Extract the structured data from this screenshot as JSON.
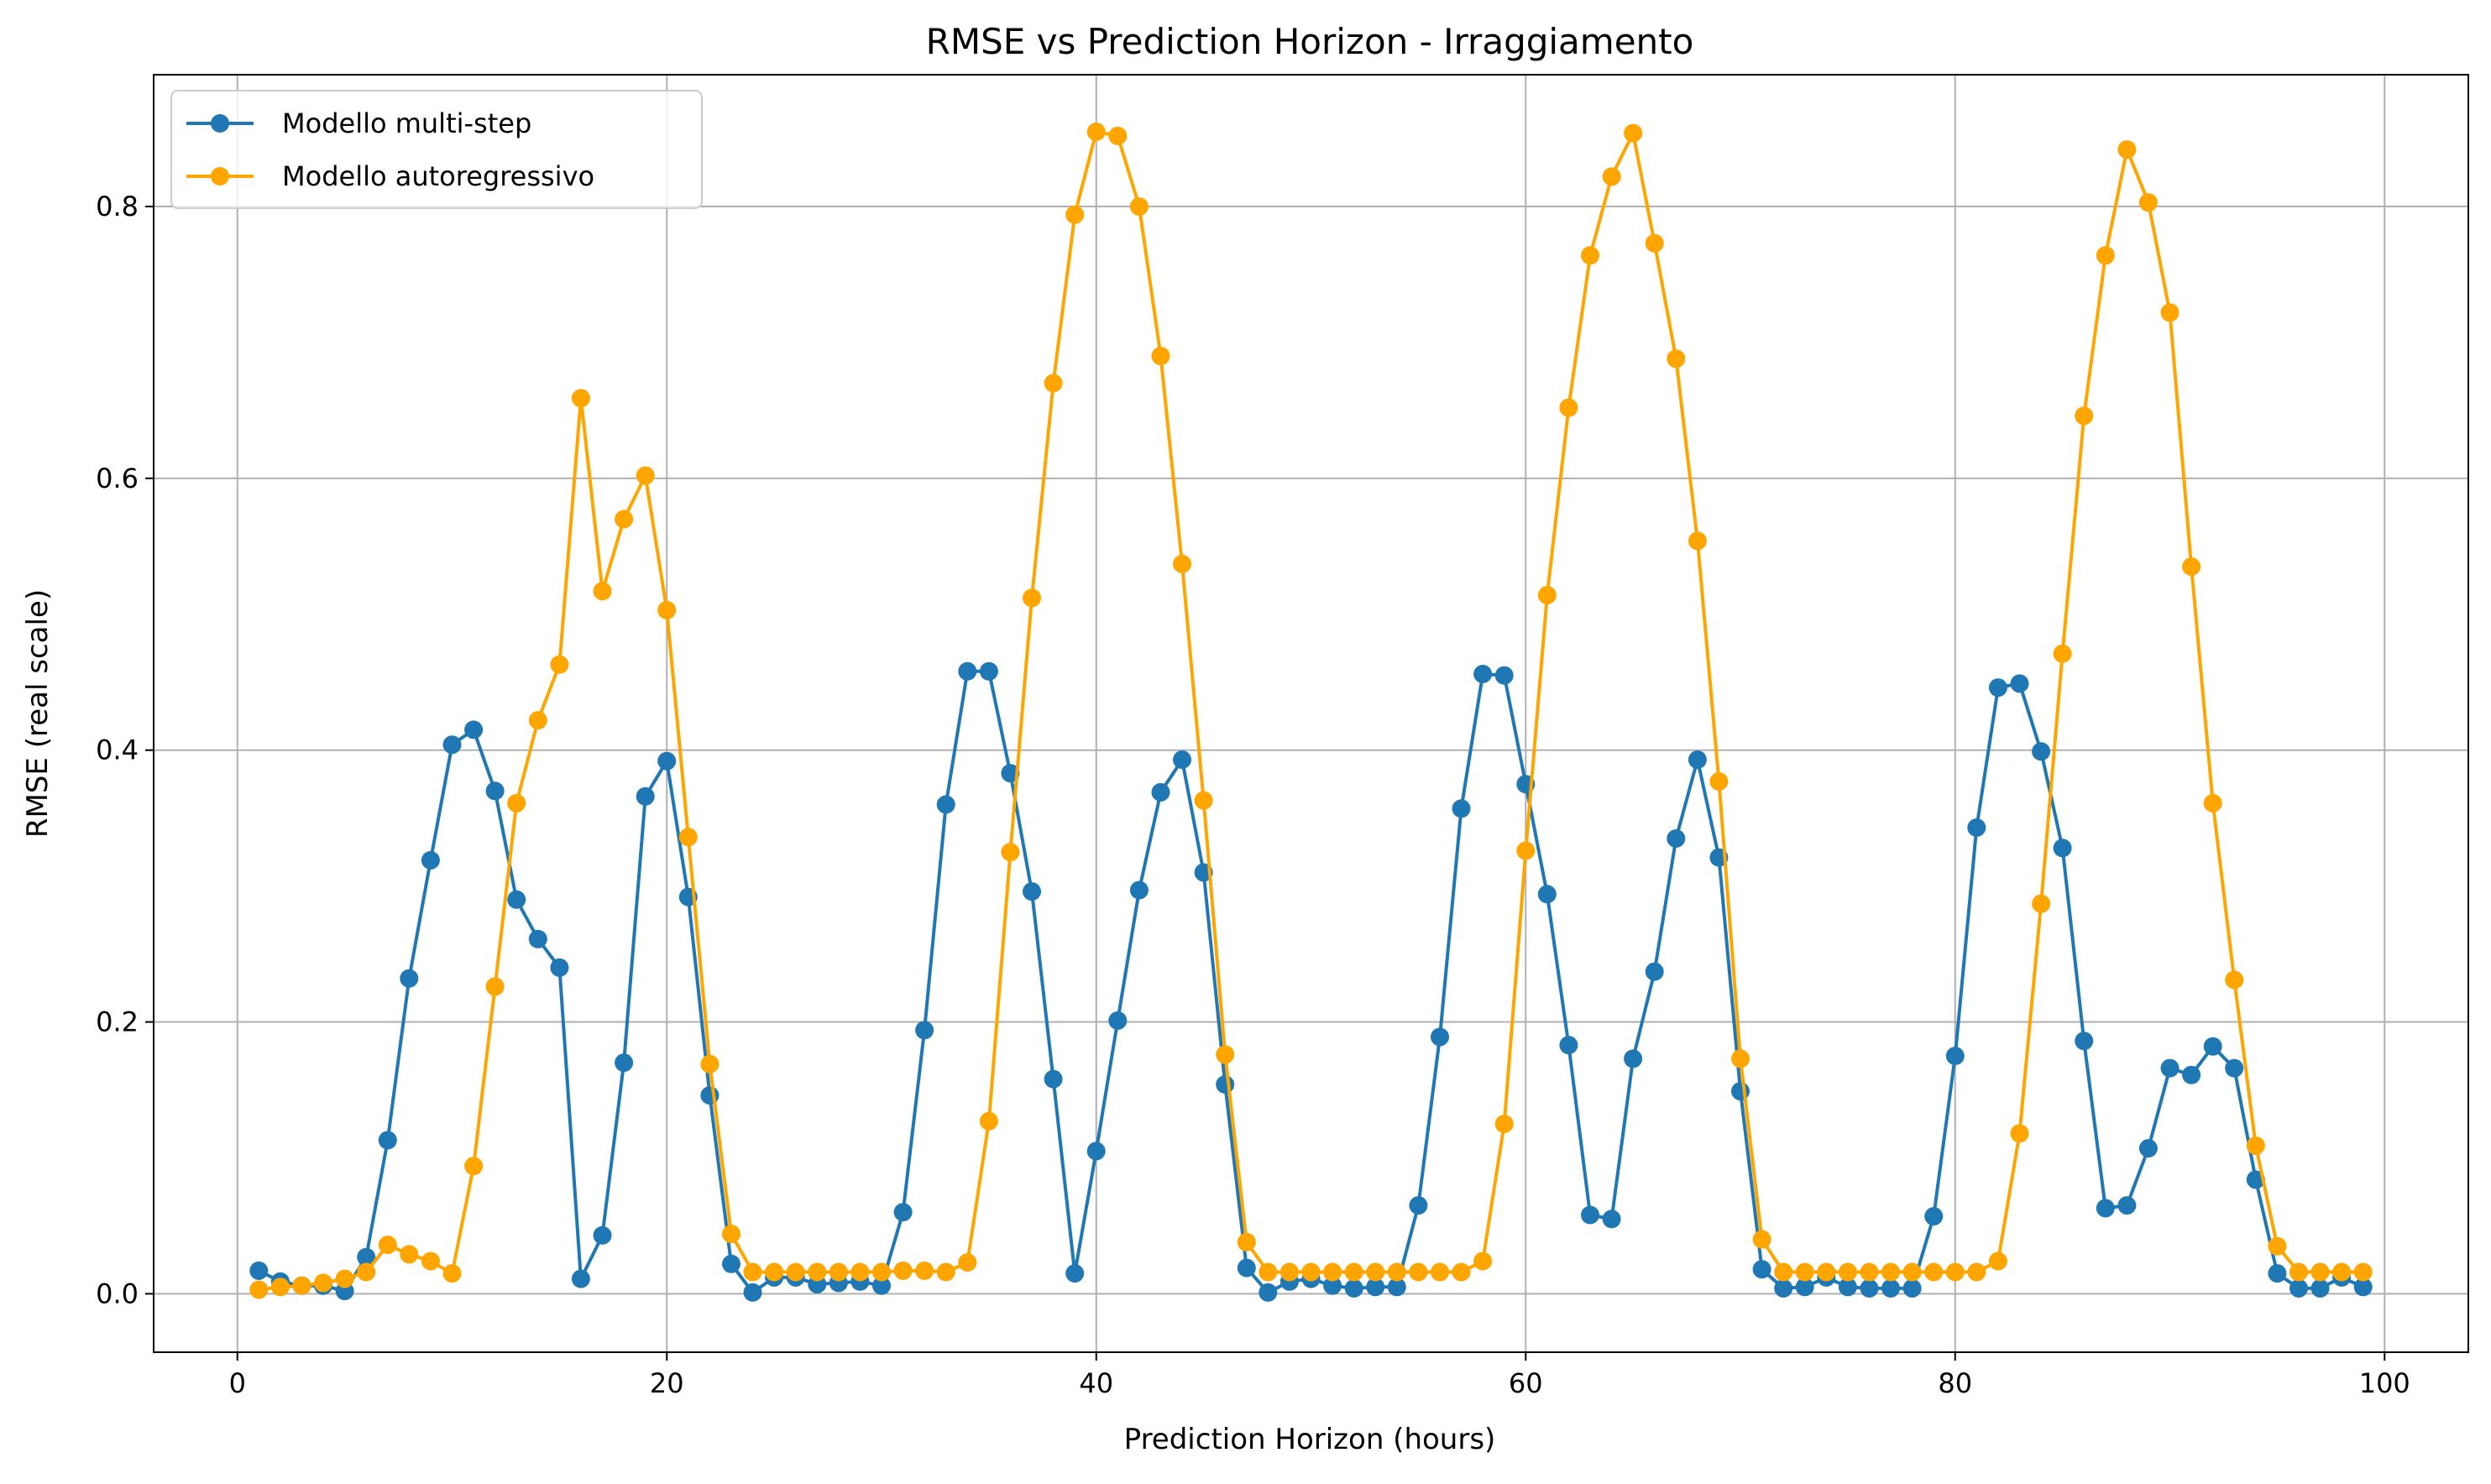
{
  "chart_data": {
    "type": "line",
    "title": "RMSE vs Prediction Horizon - Irraggiamento",
    "xlabel": "Prediction Horizon (hours)",
    "ylabel": "RMSE (real scale)",
    "xlim": [
      -3.9,
      103.9
    ],
    "ylim": [
      -0.043,
      0.897
    ],
    "x_ticks": [
      0,
      20,
      40,
      60,
      80,
      100
    ],
    "x_tick_labels": [
      "0",
      "20",
      "40",
      "60",
      "80",
      "100"
    ],
    "y_ticks": [
      0.0,
      0.2,
      0.4,
      0.6,
      0.8
    ],
    "y_tick_labels": [
      "0.0",
      "0.2",
      "0.4",
      "0.6",
      "0.8"
    ],
    "grid": true,
    "legend_position": "top-left",
    "x": [
      1,
      2,
      3,
      4,
      5,
      6,
      7,
      8,
      9,
      10,
      11,
      12,
      13,
      14,
      15,
      16,
      17,
      18,
      19,
      20,
      21,
      22,
      23,
      24,
      25,
      26,
      27,
      28,
      29,
      30,
      31,
      32,
      33,
      34,
      35,
      36,
      37,
      38,
      39,
      40,
      41,
      42,
      43,
      44,
      45,
      46,
      47,
      48,
      49,
      50,
      51,
      52,
      53,
      54,
      55,
      56,
      57,
      58,
      59,
      60,
      61,
      62,
      63,
      64,
      65,
      66,
      67,
      68,
      69,
      70,
      71,
      72,
      73,
      74,
      75,
      76,
      77,
      78,
      79,
      80,
      81,
      82,
      83,
      84,
      85,
      86,
      87,
      88,
      89,
      90,
      91,
      92,
      93,
      94,
      95,
      96,
      97,
      98,
      99
    ],
    "series": [
      {
        "name": "Modello multi-step",
        "color": "#1f77b4",
        "values": [
          0.017,
          0.009,
          0.006,
          0.006,
          0.002,
          0.027,
          0.113,
          0.232,
          0.319,
          0.404,
          0.415,
          0.37,
          0.29,
          0.261,
          0.24,
          0.011,
          0.043,
          0.17,
          0.366,
          0.392,
          0.292,
          0.146,
          0.022,
          0.001,
          0.012,
          0.012,
          0.007,
          0.008,
          0.009,
          0.006,
          0.06,
          0.194,
          0.36,
          0.458,
          0.458,
          0.383,
          0.296,
          0.158,
          0.015,
          0.105,
          0.201,
          0.297,
          0.369,
          0.393,
          0.31,
          0.154,
          0.019,
          0.001,
          0.009,
          0.011,
          0.006,
          0.004,
          0.005,
          0.005,
          0.065,
          0.189,
          0.357,
          0.456,
          0.455,
          0.375,
          0.294,
          0.183,
          0.058,
          0.055,
          0.173,
          0.237,
          0.335,
          0.393,
          0.321,
          0.149,
          0.018,
          0.004,
          0.005,
          0.012,
          0.005,
          0.004,
          0.004,
          0.004,
          0.057,
          0.175,
          0.343,
          0.446,
          0.449,
          0.399,
          0.328,
          0.186,
          0.063,
          0.065,
          0.107,
          0.166,
          0.161,
          0.182,
          0.166,
          0.084,
          0.015,
          0.004,
          0.004,
          0.012,
          0.005
        ]
      },
      {
        "name": "Modello autoregressivo",
        "color": "#ffa500",
        "values": [
          0.003,
          0.005,
          0.006,
          0.008,
          0.011,
          0.016,
          0.036,
          0.029,
          0.024,
          0.015,
          0.094,
          0.226,
          0.361,
          0.422,
          0.463,
          0.659,
          0.517,
          0.57,
          0.602,
          0.503,
          0.336,
          0.169,
          0.044,
          0.016,
          0.016,
          0.016,
          0.016,
          0.016,
          0.016,
          0.016,
          0.017,
          0.017,
          0.016,
          0.023,
          0.127,
          0.325,
          0.512,
          0.67,
          0.794,
          0.855,
          0.852,
          0.8,
          0.69,
          0.537,
          0.363,
          0.176,
          0.038,
          0.016,
          0.016,
          0.016,
          0.016,
          0.016,
          0.016,
          0.016,
          0.016,
          0.016,
          0.016,
          0.024,
          0.125,
          0.326,
          0.514,
          0.652,
          0.764,
          0.822,
          0.854,
          0.773,
          0.688,
          0.554,
          0.377,
          0.173,
          0.04,
          0.016,
          0.016,
          0.016,
          0.016,
          0.016,
          0.016,
          0.016,
          0.016,
          0.016,
          0.016,
          0.024,
          0.118,
          0.287,
          0.471,
          0.646,
          0.764,
          0.842,
          0.803,
          0.722,
          0.535,
          0.361,
          0.231,
          0.109,
          0.035,
          0.016,
          0.016,
          0.016,
          0.016
        ]
      }
    ]
  }
}
